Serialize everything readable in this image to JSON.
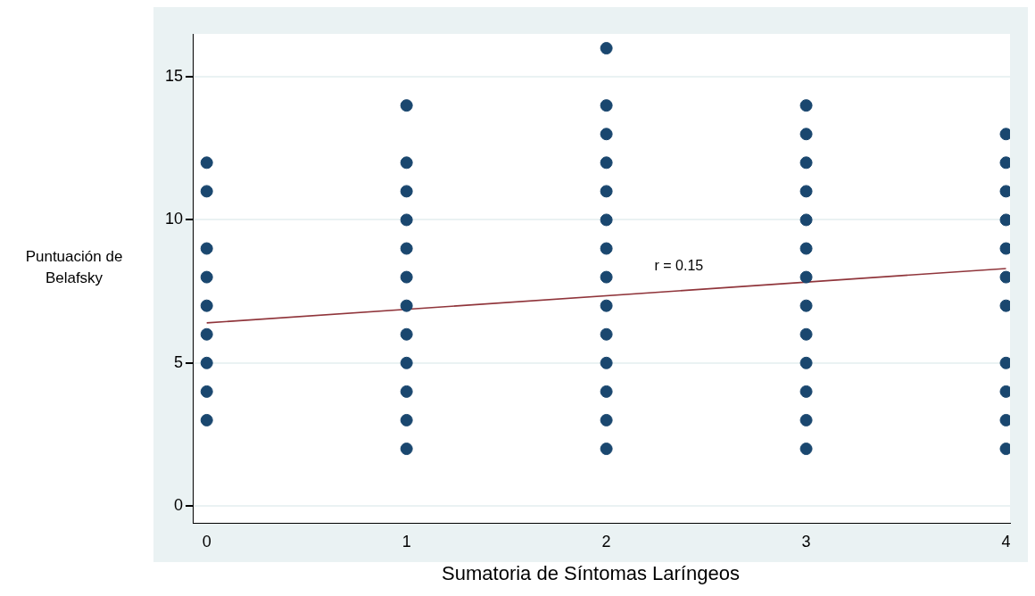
{
  "chart_data": {
    "type": "scatter",
    "xlabel": "Sumatoria de Síntomas Laríngeos",
    "ylabel": "Puntuación de Belafsky",
    "xlim": [
      -0.07,
      4.02
    ],
    "xticks": [
      0,
      1,
      2,
      3,
      4
    ],
    "ylim": [
      -0.6,
      16.5
    ],
    "yticks": [
      0,
      5,
      10,
      15
    ],
    "grid": "y",
    "legend": false,
    "series": [
      {
        "marker": "circle",
        "color": "#1a476f",
        "x": [
          0,
          0,
          0,
          0,
          0,
          0,
          0,
          0,
          0,
          1,
          1,
          1,
          1,
          1,
          1,
          1,
          1,
          1,
          1,
          1,
          1,
          2,
          2,
          2,
          2,
          2,
          2,
          2,
          2,
          2,
          2,
          2,
          2,
          2,
          2,
          3,
          3,
          3,
          3,
          3,
          3,
          3,
          3,
          3,
          3,
          3,
          3,
          3,
          4,
          4,
          4,
          4,
          4,
          4,
          4,
          4,
          4,
          4,
          4
        ],
        "values": [
          12,
          11,
          9,
          8,
          7,
          6,
          5,
          4,
          3,
          14,
          12,
          11,
          10,
          9,
          8,
          7,
          6,
          5,
          4,
          3,
          2,
          16,
          14,
          13,
          12,
          11,
          10,
          9,
          8,
          7,
          6,
          5,
          4,
          3,
          2,
          14,
          13,
          12,
          11,
          10,
          9,
          8,
          7,
          6,
          5,
          4,
          3,
          2,
          13,
          12,
          11,
          10,
          9,
          8,
          7,
          5,
          4,
          3,
          2
        ]
      },
      {
        "type": "line",
        "color": "#90353b",
        "x": [
          0,
          4
        ],
        "values": [
          6.4,
          8.3
        ]
      }
    ],
    "annotations": [
      "r = 0.15"
    ]
  }
}
